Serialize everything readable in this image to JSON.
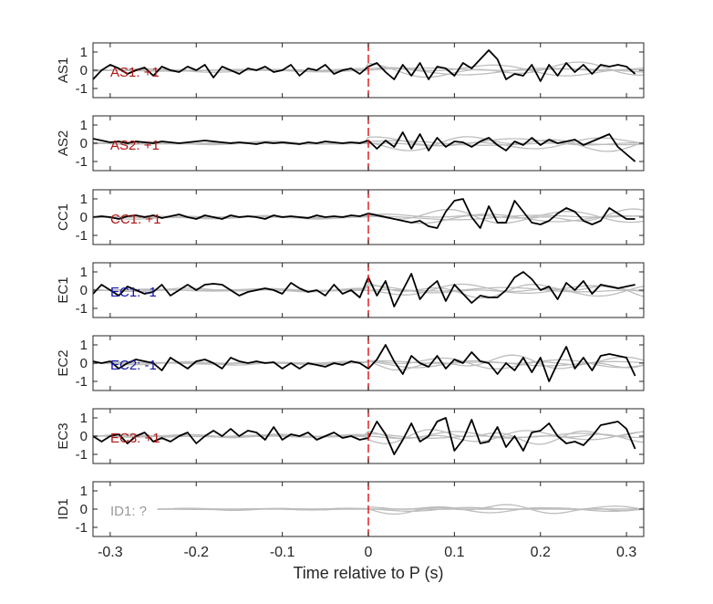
{
  "chart_data": {
    "type": "line",
    "xlabel": "Time relative to P (s)",
    "xlim": [
      -0.32,
      0.32
    ],
    "ylim": [
      -1.5,
      1.5
    ],
    "xticks": [
      -0.3,
      -0.2,
      -0.1,
      0,
      0.1,
      0.2,
      0.3
    ],
    "xtick_labels": [
      "-0.3",
      "-0.2",
      "-0.1",
      "0",
      "0.1",
      "0.2",
      "0.3"
    ],
    "yticks": [
      -1,
      0,
      1
    ],
    "ytick_labels": [
      "-1",
      "0",
      "1"
    ],
    "marker_x": 0,
    "colors": {
      "trace": "#000000",
      "reference": "#bdbdbd",
      "marker": "#e02020",
      "positive": "#b01515",
      "negative": "#1515a8",
      "unknown": "#999999"
    },
    "panels": [
      {
        "ylabel": "AS1",
        "annotation": "AS1: +1",
        "annotation_color": "#b01515",
        "series": [
          {
            "x": [
              -0.32,
              -0.31,
              -0.3,
              -0.29,
              -0.28,
              -0.27,
              -0.26,
              -0.25,
              -0.24,
              -0.23,
              -0.22,
              -0.21,
              -0.2,
              -0.19,
              -0.18,
              -0.17,
              -0.16,
              -0.15,
              -0.14,
              -0.13,
              -0.12,
              -0.11,
              -0.1,
              -0.09,
              -0.08,
              -0.07,
              -0.06,
              -0.05,
              -0.04,
              -0.03,
              -0.02,
              -0.01,
              0,
              0.01,
              0.02,
              0.03,
              0.04,
              0.05,
              0.06,
              0.07,
              0.08,
              0.09,
              0.1,
              0.11,
              0.12,
              0.13,
              0.14,
              0.15,
              0.16,
              0.17,
              0.18,
              0.19,
              0.2,
              0.21,
              0.22,
              0.23,
              0.24,
              0.25,
              0.26,
              0.27,
              0.28,
              0.29,
              0.3,
              0.31
            ],
            "y": [
              -0.5,
              0.0,
              0.3,
              0.1,
              -0.2,
              0.0,
              0.15,
              -0.3,
              0.2,
              0.0,
              -0.1,
              0.2,
              0.0,
              0.3,
              -0.4,
              0.2,
              0.0,
              -0.2,
              0.1,
              0.0,
              0.2,
              -0.1,
              0.0,
              0.3,
              -0.3,
              0.1,
              0.0,
              0.3,
              -0.2,
              0.0,
              0.1,
              -0.2,
              0.2,
              0.4,
              -0.1,
              -0.5,
              0.3,
              -0.3,
              0.4,
              -0.5,
              0.2,
              0.1,
              -0.3,
              0.4,
              0.1,
              0.6,
              1.1,
              0.6,
              -0.5,
              -0.2,
              -0.3,
              0.3,
              -0.6,
              0.3,
              -0.3,
              0.4,
              -0.1,
              0.3,
              -0.2,
              0.3,
              0.2,
              0.3,
              0.2,
              -0.2
            ]
          }
        ]
      },
      {
        "ylabel": "AS2",
        "annotation": "AS2: +1",
        "annotation_color": "#b01515",
        "series": [
          {
            "x": [
              -0.32,
              -0.31,
              -0.3,
              -0.29,
              -0.28,
              -0.27,
              -0.26,
              -0.25,
              -0.24,
              -0.23,
              -0.22,
              -0.21,
              -0.2,
              -0.19,
              -0.18,
              -0.17,
              -0.16,
              -0.15,
              -0.14,
              -0.13,
              -0.12,
              -0.11,
              -0.1,
              -0.09,
              -0.08,
              -0.07,
              -0.06,
              -0.05,
              -0.04,
              -0.03,
              -0.02,
              -0.01,
              0,
              0.01,
              0.02,
              0.03,
              0.04,
              0.05,
              0.06,
              0.07,
              0.08,
              0.09,
              0.1,
              0.11,
              0.12,
              0.13,
              0.14,
              0.15,
              0.16,
              0.17,
              0.18,
              0.19,
              0.2,
              0.21,
              0.22,
              0.23,
              0.24,
              0.25,
              0.26,
              0.27,
              0.28,
              0.29,
              0.3,
              0.31
            ],
            "y": [
              0.25,
              0.15,
              0.05,
              0.1,
              0.0,
              0.1,
              0.05,
              0.0,
              0.1,
              0.05,
              0.0,
              0.05,
              0.1,
              0.15,
              0.1,
              0.05,
              0.0,
              0.05,
              0.0,
              -0.05,
              0.05,
              0.0,
              0.05,
              0.0,
              -0.05,
              0.05,
              0.0,
              0.1,
              0.05,
              0.0,
              0.05,
              0.0,
              0.15,
              -0.3,
              0.15,
              -0.2,
              0.6,
              -0.3,
              0.5,
              -0.4,
              0.3,
              -0.2,
              0.1,
              0.05,
              -0.2,
              0.1,
              0.3,
              -0.1,
              -0.4,
              0.1,
              -0.1,
              0.3,
              -0.1,
              0.2,
              0.0,
              0.1,
              0.2,
              -0.1,
              0.1,
              0.3,
              0.5,
              -0.2,
              -0.6,
              -1.0
            ]
          }
        ]
      },
      {
        "ylabel": "CC1",
        "annotation": "CC1: +1",
        "annotation_color": "#b01515",
        "series": [
          {
            "x": [
              -0.32,
              -0.31,
              -0.3,
              -0.29,
              -0.28,
              -0.27,
              -0.26,
              -0.25,
              -0.24,
              -0.23,
              -0.22,
              -0.21,
              -0.2,
              -0.19,
              -0.18,
              -0.17,
              -0.16,
              -0.15,
              -0.14,
              -0.13,
              -0.12,
              -0.11,
              -0.1,
              -0.09,
              -0.08,
              -0.07,
              -0.06,
              -0.05,
              -0.04,
              -0.03,
              -0.02,
              -0.01,
              0,
              0.01,
              0.02,
              0.03,
              0.04,
              0.05,
              0.06,
              0.07,
              0.08,
              0.09,
              0.1,
              0.11,
              0.12,
              0.13,
              0.14,
              0.15,
              0.16,
              0.17,
              0.18,
              0.19,
              0.2,
              0.21,
              0.22,
              0.23,
              0.24,
              0.25,
              0.26,
              0.27,
              0.28,
              0.29,
              0.3,
              0.31
            ],
            "y": [
              0.0,
              0.05,
              0.0,
              -0.1,
              0.05,
              0.1,
              0.0,
              0.1,
              -0.05,
              0.05,
              0.15,
              0.0,
              -0.1,
              0.1,
              0.0,
              -0.1,
              0.1,
              0.0,
              0.05,
              0.0,
              -0.1,
              0.1,
              0.0,
              0.05,
              0.0,
              -0.05,
              0.1,
              0.0,
              0.05,
              0.0,
              0.1,
              0.05,
              0.2,
              0.1,
              0.0,
              -0.1,
              -0.2,
              -0.3,
              -0.2,
              -0.5,
              -0.6,
              0.3,
              0.9,
              1.0,
              0.0,
              -0.6,
              0.6,
              -0.3,
              -0.3,
              0.9,
              0.3,
              -0.3,
              -0.4,
              -0.2,
              0.2,
              0.5,
              0.3,
              -0.2,
              -0.4,
              -0.2,
              0.5,
              0.2,
              -0.1,
              -0.1
            ]
          }
        ]
      },
      {
        "ylabel": "EC1",
        "annotation": "EC1: -1",
        "annotation_color": "#1515a8",
        "series": [
          {
            "x": [
              -0.32,
              -0.31,
              -0.3,
              -0.29,
              -0.28,
              -0.27,
              -0.26,
              -0.25,
              -0.24,
              -0.23,
              -0.22,
              -0.21,
              -0.2,
              -0.19,
              -0.18,
              -0.17,
              -0.16,
              -0.15,
              -0.14,
              -0.13,
              -0.12,
              -0.11,
              -0.1,
              -0.09,
              -0.08,
              -0.07,
              -0.06,
              -0.05,
              -0.04,
              -0.03,
              -0.02,
              -0.01,
              0,
              0.01,
              0.02,
              0.03,
              0.04,
              0.05,
              0.06,
              0.07,
              0.08,
              0.09,
              0.1,
              0.11,
              0.12,
              0.13,
              0.14,
              0.15,
              0.16,
              0.17,
              0.18,
              0.19,
              0.2,
              0.21,
              0.22,
              0.23,
              0.24,
              0.25,
              0.26,
              0.27,
              0.28,
              0.29,
              0.3,
              0.31
            ],
            "y": [
              -0.2,
              0.3,
              0.0,
              -0.3,
              0.2,
              0.0,
              -0.2,
              -0.1,
              0.3,
              -0.3,
              0.0,
              0.3,
              0.0,
              0.3,
              0.35,
              0.3,
              0.0,
              -0.3,
              -0.1,
              0.0,
              0.1,
              0.0,
              -0.2,
              0.4,
              0.1,
              -0.1,
              0.0,
              -0.3,
              0.3,
              -0.2,
              0.0,
              -0.4,
              0.7,
              -0.3,
              0.5,
              -0.9,
              0.0,
              0.9,
              -0.5,
              0.1,
              0.5,
              -0.6,
              0.3,
              -0.2,
              -0.7,
              -0.3,
              -0.4,
              -0.4,
              0.0,
              0.7,
              1.0,
              0.6,
              0.0,
              0.2,
              -0.5,
              0.4,
              0.0,
              0.5,
              -0.2,
              0.3,
              0.2,
              0.1,
              0.2,
              0.3
            ]
          }
        ]
      },
      {
        "ylabel": "EC2",
        "annotation": "EC2: -1",
        "annotation_color": "#1515a8",
        "series": [
          {
            "x": [
              -0.32,
              -0.31,
              -0.3,
              -0.29,
              -0.28,
              -0.27,
              -0.26,
              -0.25,
              -0.24,
              -0.23,
              -0.22,
              -0.21,
              -0.2,
              -0.19,
              -0.18,
              -0.17,
              -0.16,
              -0.15,
              -0.14,
              -0.13,
              -0.12,
              -0.11,
              -0.1,
              -0.09,
              -0.08,
              -0.07,
              -0.06,
              -0.05,
              -0.04,
              -0.03,
              -0.02,
              -0.01,
              0,
              0.01,
              0.02,
              0.03,
              0.04,
              0.05,
              0.06,
              0.07,
              0.08,
              0.09,
              0.1,
              0.11,
              0.12,
              0.13,
              0.14,
              0.15,
              0.16,
              0.17,
              0.18,
              0.19,
              0.2,
              0.21,
              0.22,
              0.23,
              0.24,
              0.25,
              0.26,
              0.27,
              0.28,
              0.29,
              0.3,
              0.31
            ],
            "y": [
              0.1,
              0.0,
              0.1,
              -0.3,
              0.0,
              0.2,
              0.1,
              0.0,
              -0.4,
              0.3,
              0.0,
              -0.3,
              0.1,
              0.2,
              0.0,
              -0.3,
              0.3,
              0.1,
              0.0,
              0.1,
              0.0,
              0.05,
              -0.3,
              0.0,
              -0.3,
              0.0,
              -0.1,
              -0.2,
              0.0,
              -0.1,
              0.1,
              0.0,
              -0.3,
              0.2,
              1.0,
              0.1,
              -0.6,
              0.4,
              0.0,
              -0.2,
              0.4,
              -0.3,
              0.2,
              0.0,
              0.6,
              0.1,
              0.0,
              -0.6,
              0.0,
              -0.4,
              0.3,
              -0.5,
              0.3,
              -1.0,
              0.0,
              0.9,
              -0.3,
              0.3,
              -0.4,
              0.4,
              0.5,
              0.4,
              0.3,
              -0.7
            ]
          }
        ]
      },
      {
        "ylabel": "EC3",
        "annotation": "EC3: +1",
        "annotation_color": "#b01515",
        "series": [
          {
            "x": [
              -0.32,
              -0.31,
              -0.3,
              -0.29,
              -0.28,
              -0.27,
              -0.26,
              -0.25,
              -0.24,
              -0.23,
              -0.22,
              -0.21,
              -0.2,
              -0.19,
              -0.18,
              -0.17,
              -0.16,
              -0.15,
              -0.14,
              -0.13,
              -0.12,
              -0.11,
              -0.1,
              -0.09,
              -0.08,
              -0.07,
              -0.06,
              -0.05,
              -0.04,
              -0.03,
              -0.02,
              -0.01,
              0,
              0.01,
              0.02,
              0.03,
              0.04,
              0.05,
              0.06,
              0.07,
              0.08,
              0.09,
              0.1,
              0.11,
              0.12,
              0.13,
              0.14,
              0.15,
              0.16,
              0.17,
              0.18,
              0.19,
              0.2,
              0.21,
              0.22,
              0.23,
              0.24,
              0.25,
              0.26,
              0.27,
              0.28,
              0.29,
              0.3,
              0.31
            ],
            "y": [
              0.0,
              -0.3,
              0.0,
              0.1,
              -0.4,
              0.0,
              0.2,
              -0.3,
              -0.1,
              -0.3,
              0.0,
              0.2,
              -0.4,
              0.0,
              0.3,
              0.0,
              0.4,
              0.0,
              0.3,
              0.2,
              -0.2,
              0.5,
              -0.2,
              0.1,
              0.0,
              0.2,
              -0.2,
              0.0,
              0.2,
              -0.1,
              0.0,
              -0.2,
              -0.1,
              0.8,
              0.1,
              -1.0,
              -0.2,
              0.7,
              -0.3,
              0.0,
              0.8,
              1.0,
              -0.8,
              -0.2,
              0.9,
              -0.4,
              -0.3,
              0.5,
              -0.6,
              0.0,
              -0.8,
              0.2,
              0.3,
              0.7,
              0.0,
              -0.4,
              -0.3,
              -0.5,
              0.0,
              0.6,
              0.7,
              0.8,
              0.4,
              -0.7
            ]
          }
        ]
      },
      {
        "ylabel": "ID1",
        "annotation": "ID1: ?",
        "annotation_color": "#999999",
        "series": []
      }
    ]
  }
}
